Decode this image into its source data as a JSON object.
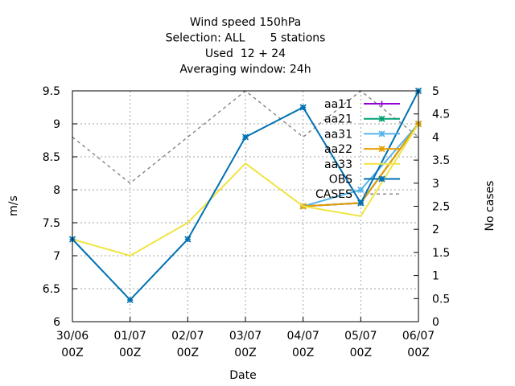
{
  "chart_data": {
    "type": "line",
    "title_lines": [
      "Wind speed 150hPa",
      "Selection: ALL       5 stations",
      "Used  12 + 24",
      "Averaging window: 24h"
    ],
    "xlabel": "Date",
    "ylabel": "m/s",
    "y2label": "No cases",
    "categories": [
      "30/06\n00Z",
      "01/07\n00Z",
      "02/07\n00Z",
      "03/07\n00Z",
      "04/07\n00Z",
      "05/07\n00Z",
      "06/07\n00Z"
    ],
    "ylim": [
      6,
      9.5
    ],
    "yticks": [
      "6",
      "6.5",
      "7",
      "7.5",
      "8",
      "8.5",
      "9",
      "9.5"
    ],
    "y2lim": [
      0,
      5
    ],
    "y2ticks": [
      "0",
      "0.5",
      "1",
      "1.5",
      "2",
      "2.5",
      "3",
      "3.5",
      "4",
      "4.5",
      "5"
    ],
    "grid": true,
    "legend_position": "top-right",
    "series": [
      {
        "name": "aa11",
        "color": "#9400d3",
        "marker": "plus",
        "values": [
          null,
          null,
          null,
          null,
          7.75,
          7.8,
          9.0
        ]
      },
      {
        "name": "aa21",
        "color": "#009e73",
        "marker": "star",
        "values": [
          null,
          null,
          null,
          null,
          7.75,
          7.8,
          9.0
        ]
      },
      {
        "name": "aa31",
        "color": "#56b4e9",
        "marker": "star",
        "values": [
          null,
          null,
          null,
          null,
          7.75,
          8.0,
          9.0
        ]
      },
      {
        "name": "aa22",
        "color": "#e69f00",
        "marker": "star",
        "values": [
          null,
          null,
          null,
          null,
          7.75,
          7.8,
          9.0
        ]
      },
      {
        "name": "aa33",
        "color": "#f0e442",
        "marker": "none",
        "values": [
          7.25,
          7.0,
          7.5,
          8.4,
          7.75,
          7.6,
          9.0
        ]
      },
      {
        "name": "OBS",
        "color": "#0072b2",
        "marker": "star",
        "values": [
          7.25,
          6.33,
          7.25,
          8.8,
          9.25,
          7.8,
          9.5
        ]
      }
    ],
    "cases": {
      "name": "CASES",
      "color": "#888888",
      "values": [
        4,
        3,
        4,
        5,
        4,
        5,
        4
      ]
    }
  }
}
